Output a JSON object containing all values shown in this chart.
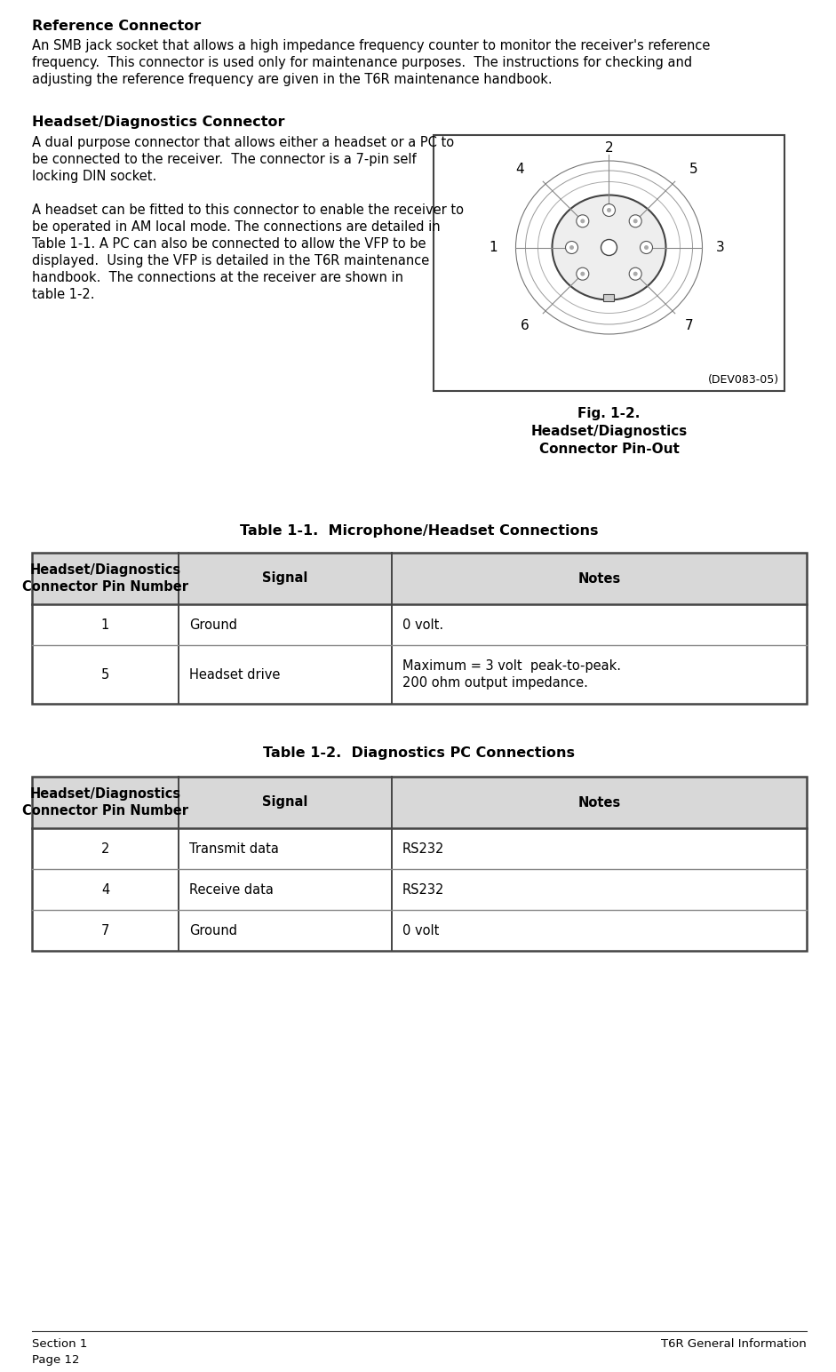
{
  "bg_color": "#ffffff",
  "text_color": "#000000",
  "heading1": "Reference Connector",
  "para1_lines": [
    "An SMB jack socket that allows a high impedance frequency counter to monitor the receiver's reference",
    "frequency.  This connector is used only for maintenance purposes.  The instructions for checking and",
    "adjusting the reference frequency are given in the T6R maintenance handbook."
  ],
  "heading2": "Headset/Diagnostics Connector",
  "para2_lines": [
    "A dual purpose connector that allows either a headset or a PC to",
    "be connected to the receiver.  The connector is a 7-pin self",
    "locking DIN socket.",
    "",
    "A headset can be fitted to this connector to enable the receiver to",
    "be operated in AM local mode. The connections are detailed in",
    "Table 1-1. A PC can also be connected to allow the VFP to be",
    "displayed.  Using the VFP is detailed in the T6R maintenance",
    "handbook.  The connections at the receiver are shown in",
    "table 1-2."
  ],
  "fig_caption_line1": "Fig. 1-2.",
  "fig_caption_line2": "Headset/Diagnostics",
  "fig_caption_line3": "Connector Pin-Out",
  "fig_dev": "(DEV083-05)",
  "table1_title": "Table 1-1.  Microphone/Headset Connections",
  "table1_headers": [
    "Headset/Diagnostics\nConnector Pin Number",
    "Signal",
    "Notes"
  ],
  "table1_rows": [
    [
      "1",
      "Ground",
      "0 volt."
    ],
    [
      "5",
      "Headset drive",
      "Maximum = 3 volt  peak-to-peak.\n200 ohm output impedance."
    ]
  ],
  "table2_title": "Table 1-2.  Diagnostics PC Connections",
  "table2_headers": [
    "Headset/Diagnostics\nConnector Pin Number",
    "Signal",
    "Notes"
  ],
  "table2_rows": [
    [
      "2",
      "Transmit data",
      "RS232"
    ],
    [
      "4",
      "Receive data",
      "RS232"
    ],
    [
      "7",
      "Ground",
      "0 volt"
    ]
  ],
  "footer_left1": "Section 1",
  "footer_left2": "Page 12",
  "footer_right": "T6R General Information",
  "header_color": "#d8d8d8",
  "table_border_color": "#444444",
  "table_line_color": "#888888"
}
